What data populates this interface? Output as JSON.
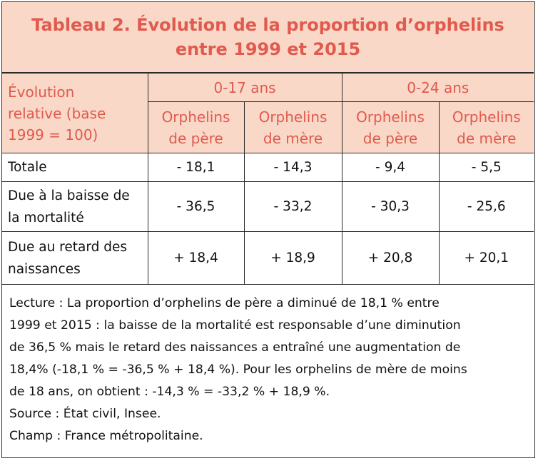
{
  "title": {
    "line1": "Tableau 2. Évolution de la proportion d’orphelins",
    "line2": "entre 1999 et 2015"
  },
  "header": {
    "corner": [
      "Évolution",
      "relative (base",
      "1999 = 100)"
    ],
    "groups": [
      "0-17 ans",
      "0-24 ans"
    ],
    "subcols": [
      [
        "Orphelins",
        "de père"
      ],
      [
        "Orphelins",
        "de mère"
      ],
      [
        "Orphelins",
        "de père"
      ],
      [
        "Orphelins",
        "de mère"
      ]
    ]
  },
  "rows": [
    {
      "label": [
        "Totale"
      ],
      "values": [
        "- 18,1",
        "- 14,3",
        "- 9,4",
        "- 5,5"
      ]
    },
    {
      "label": [
        "Due à la baisse de",
        "la mortalité"
      ],
      "values": [
        "- 36,5",
        "- 33,2",
        "- 30,3",
        "- 25,6"
      ]
    },
    {
      "label": [
        "Due au retard des",
        "naissances"
      ],
      "values": [
        "+ 18,4",
        "+ 18,9",
        "+ 20,8",
        "+ 20,1"
      ]
    }
  ],
  "chart_data": {
    "type": "table",
    "title": "Tableau 2. Évolution de la proportion d’orphelins entre 1999 et 2015",
    "columns": [
      "0-17 ans – Orphelins de père",
      "0-17 ans – Orphelins de mère",
      "0-24 ans – Orphelins de père",
      "0-24 ans – Orphelins de mère"
    ],
    "rows": [
      "Totale",
      "Due à la baisse de la mortalité",
      "Due au retard des naissances"
    ],
    "values": [
      [
        -18.1,
        -14.3,
        -9.4,
        -5.5
      ],
      [
        -36.5,
        -33.2,
        -30.3,
        -25.6
      ],
      [
        18.4,
        18.9,
        20.8,
        20.1
      ]
    ]
  },
  "notes": {
    "lecture_lines": [
      "Lecture : La proportion d’orphelins de père a diminué de 18,1 % entre",
      "1999 et 2015 : la baisse de la mortalité est responsable d’une diminution",
      "de 36,5 % mais le retard des naissances a entraîné une augmentation de",
      "18,4% (-18,1 % = -36,5 % + 18,4 %). Pour les orphelins de mère de moins",
      "de 18 ans, on obtient : -14,3 % = -33,2 % + 18,9 %."
    ],
    "source": "Source : État civil, Insee.",
    "champ": "Champ : France métropolitaine."
  },
  "colors": {
    "accent": "#e05a4e",
    "header_bg": "#f9d8c8",
    "border": "#2a2a2a"
  }
}
